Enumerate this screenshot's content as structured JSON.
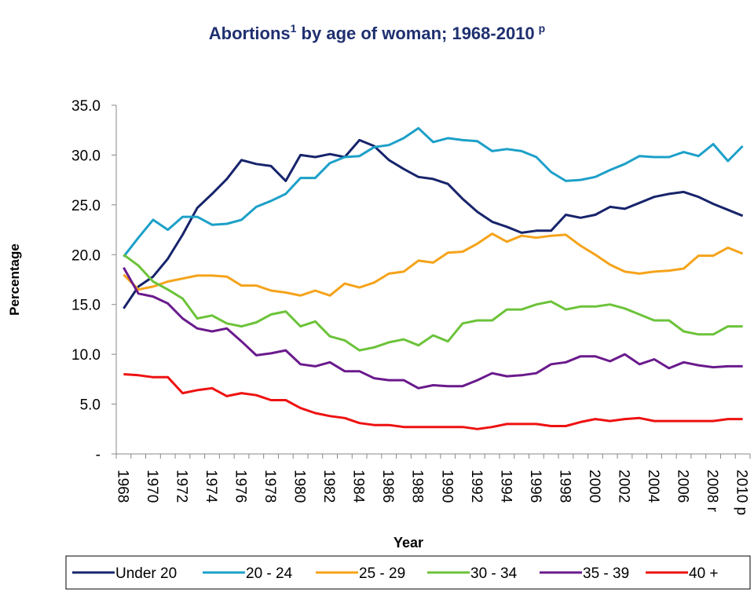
{
  "chart_data": {
    "type": "line",
    "title": "Abortions",
    "title_superscript": "1",
    "title_continued": " by age of woman; 1968-2010",
    "title_superscript_2": "p",
    "y_label": "Percentage",
    "x_label": "Year",
    "categories": [
      "1968",
      null,
      "1970",
      null,
      "1972",
      null,
      "1974",
      null,
      "1976",
      null,
      "1978",
      null,
      "1980",
      null,
      "1982",
      null,
      "1984",
      null,
      "1986",
      null,
      "1988",
      null,
      "1990",
      null,
      "1992",
      null,
      "1994",
      null,
      "1996",
      null,
      "1998",
      null,
      "2000",
      null,
      "2002",
      null,
      "2004",
      null,
      "2006",
      null,
      "2008 r",
      null,
      "2010 p"
    ],
    "ylim": [
      0,
      35
    ],
    "yticks": [
      {
        "value": 0,
        "label": "-"
      },
      {
        "value": 5,
        "label": "5.0"
      },
      {
        "value": 10,
        "label": "10.0"
      },
      {
        "value": 15,
        "label": "15.0"
      },
      {
        "value": 20,
        "label": "20.0"
      },
      {
        "value": 25,
        "label": "25.0"
      },
      {
        "value": 30,
        "label": "30.0"
      },
      {
        "value": 35,
        "label": "35.0"
      }
    ],
    "legend": "bottom",
    "series": [
      {
        "name": "Under 20",
        "color": "#17246b",
        "values": [
          14.6,
          16.8,
          17.8,
          19.6,
          22.0,
          24.7,
          26.1,
          27.6,
          29.5,
          29.1,
          28.9,
          27.4,
          30.0,
          29.8,
          30.1,
          29.8,
          31.5,
          30.9,
          29.5,
          28.6,
          27.8,
          27.6,
          27.1,
          25.6,
          24.3,
          23.3,
          22.8,
          22.2,
          22.4,
          22.4,
          24.0,
          23.7,
          24.0,
          24.8,
          24.6,
          25.2,
          25.8,
          26.1,
          26.3,
          25.8,
          25.1,
          24.5,
          23.9
        ]
      },
      {
        "name": "20 - 24",
        "color": "#1ca0c8",
        "values": [
          19.8,
          21.7,
          23.5,
          22.5,
          23.8,
          23.8,
          23.0,
          23.1,
          23.5,
          24.8,
          25.4,
          26.1,
          27.7,
          27.7,
          29.2,
          29.8,
          29.9,
          30.8,
          31.0,
          31.7,
          32.7,
          31.3,
          31.7,
          31.5,
          31.4,
          30.4,
          30.6,
          30.4,
          29.8,
          28.3,
          27.4,
          27.5,
          27.8,
          28.5,
          29.1,
          29.9,
          29.8,
          29.8,
          30.3,
          29.9,
          31.1,
          29.4,
          30.9
        ]
      },
      {
        "name": "25 - 29",
        "color": "#f5a31a",
        "values": [
          18.0,
          16.5,
          16.8,
          17.3,
          17.6,
          17.9,
          17.9,
          17.8,
          16.9,
          16.9,
          16.4,
          16.2,
          15.9,
          16.4,
          15.9,
          17.1,
          16.7,
          17.2,
          18.1,
          18.3,
          19.4,
          19.2,
          20.2,
          20.3,
          21.1,
          22.1,
          21.3,
          21.9,
          21.7,
          21.9,
          22.0,
          20.9,
          20.0,
          19.0,
          18.3,
          18.1,
          18.3,
          18.4,
          18.6,
          19.9,
          19.9,
          20.7,
          20.1
        ]
      },
      {
        "name": "30 - 34",
        "color": "#6cc33a",
        "values": [
          20.0,
          18.9,
          17.3,
          16.5,
          15.6,
          13.6,
          13.9,
          13.1,
          12.8,
          13.2,
          14.0,
          14.3,
          12.8,
          13.3,
          11.8,
          11.4,
          10.4,
          10.7,
          11.2,
          11.5,
          10.9,
          11.9,
          11.3,
          13.1,
          13.4,
          13.4,
          14.5,
          14.5,
          15.0,
          15.3,
          14.5,
          14.8,
          14.8,
          15.0,
          14.6,
          14.0,
          13.4,
          13.4,
          12.3,
          12.0,
          12.0,
          12.8,
          12.8
        ]
      },
      {
        "name": "35 - 39",
        "color": "#6a1a8c",
        "values": [
          18.7,
          16.1,
          15.8,
          15.1,
          13.6,
          12.6,
          12.3,
          12.6,
          11.3,
          9.9,
          10.1,
          10.4,
          9.0,
          8.8,
          9.2,
          8.3,
          8.3,
          7.6,
          7.4,
          7.4,
          6.6,
          6.9,
          6.8,
          6.8,
          7.4,
          8.1,
          7.8,
          7.9,
          8.1,
          9.0,
          9.2,
          9.8,
          9.8,
          9.3,
          10.0,
          9.0,
          9.5,
          8.6,
          9.2,
          8.9,
          8.7,
          8.8,
          8.8
        ]
      },
      {
        "name": "40 +",
        "color": "#ee1111",
        "values": [
          8.0,
          7.9,
          7.7,
          7.7,
          6.1,
          6.4,
          6.6,
          5.8,
          6.1,
          5.9,
          5.4,
          5.4,
          4.6,
          4.1,
          3.8,
          3.6,
          3.1,
          2.9,
          2.9,
          2.7,
          2.7,
          2.7,
          2.7,
          2.7,
          2.5,
          2.7,
          3.0,
          3.0,
          3.0,
          2.8,
          2.8,
          3.2,
          3.5,
          3.3,
          3.5,
          3.6,
          3.3,
          3.3,
          3.3,
          3.3,
          3.3,
          3.5,
          3.5
        ]
      }
    ]
  }
}
